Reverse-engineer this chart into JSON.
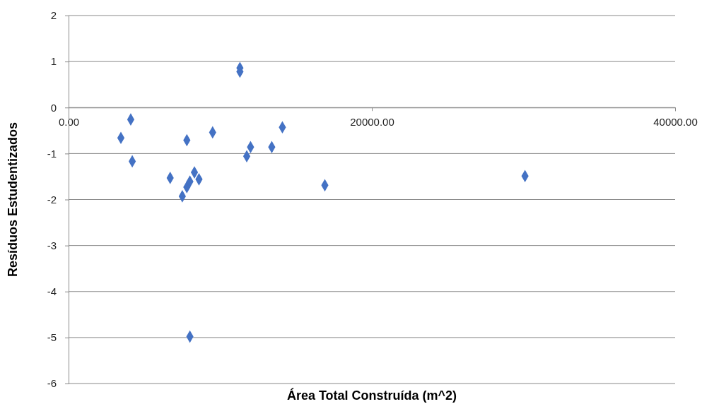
{
  "chart_data": {
    "type": "scatter",
    "xlabel": "Área Total Construída (m^2)",
    "ylabel": "Resíduos Estudentizados",
    "x": [
      3450,
      4100,
      4200,
      6700,
      7500,
      7800,
      7800,
      8000,
      8000,
      8300,
      8600,
      9500,
      11300,
      11300,
      11750,
      12000,
      13400,
      14100,
      16900,
      30100
    ],
    "series": [
      {
        "color": "#4472c4",
        "values": [
          -0.66,
          -0.26,
          -1.17,
          -1.53,
          -1.93,
          -0.71,
          -1.73,
          -1.61,
          -4.98,
          -1.41,
          -1.56,
          -0.54,
          0.86,
          0.78,
          -1.06,
          -0.86,
          -0.86,
          -0.43,
          -1.69,
          -1.49
        ]
      }
    ],
    "xlim": [
      0,
      40000
    ],
    "xticks": [
      {
        "value": 0,
        "label": "0.00"
      },
      {
        "value": 20000,
        "label": "20000.00"
      },
      {
        "value": 40000,
        "label": "40000.00"
      }
    ],
    "ylim": [
      -6,
      2
    ],
    "yticks": [
      -6,
      -5,
      -4,
      -3,
      -2,
      -1,
      0,
      1,
      2
    ],
    "grid": "y",
    "marker": "diamond"
  }
}
